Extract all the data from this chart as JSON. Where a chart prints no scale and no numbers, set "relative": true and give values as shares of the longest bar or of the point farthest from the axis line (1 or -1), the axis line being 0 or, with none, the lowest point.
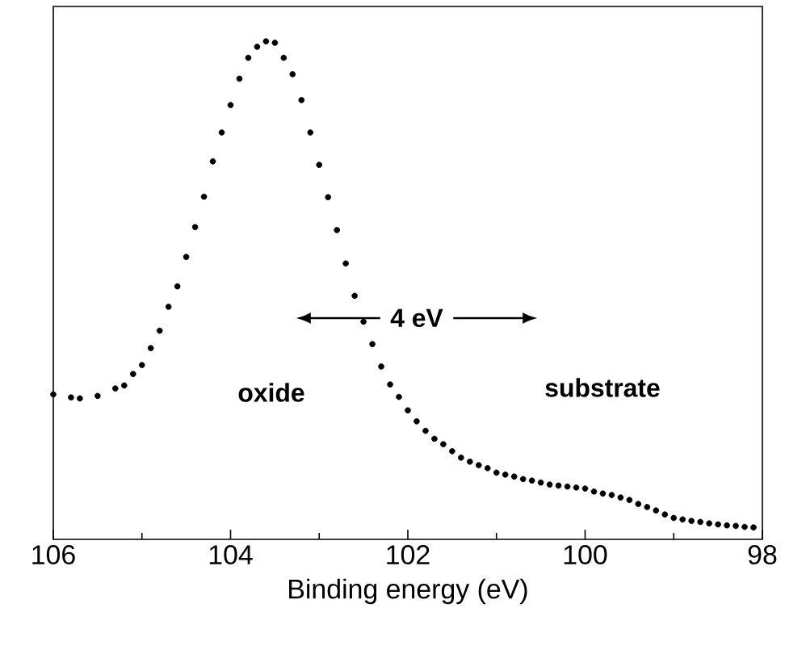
{
  "chart_data": {
    "type": "scatter",
    "relative": true,
    "xlabel": "Binding energy (eV)",
    "xlim": [
      106,
      98
    ],
    "xticks": [
      106,
      {
        "value": 105,
        "label": null
      },
      104,
      {
        "value": 103,
        "label": null
      },
      102,
      {
        "value": 101,
        "label": null
      },
      100,
      {
        "value": 99,
        "label": null
      },
      98
    ],
    "tick_labels": "x",
    "marker": "circle",
    "grid": false,
    "annotations": [
      "4 eV",
      "oxide",
      "substrate"
    ],
    "series": [
      {
        "color": "#000000",
        "x": [
          106.0,
          105.8,
          105.7,
          105.5,
          105.3,
          105.2,
          105.1,
          105.0,
          104.9,
          104.8,
          104.7,
          104.6,
          104.5,
          104.4,
          104.3,
          104.2,
          104.1,
          104.0,
          103.9,
          103.8,
          103.7,
          103.6,
          103.5,
          103.4,
          103.3,
          103.2,
          103.1,
          103.0,
          102.9,
          102.8,
          102.7,
          102.6,
          102.5,
          102.4,
          102.3,
          102.2,
          102.1,
          102.0,
          101.9,
          101.8,
          101.7,
          101.6,
          101.5,
          101.4,
          101.3,
          101.2,
          101.1,
          101.0,
          100.9,
          100.8,
          100.7,
          100.6,
          100.5,
          100.4,
          100.3,
          100.2,
          100.1,
          100.0,
          99.9,
          99.8,
          99.7,
          99.6,
          99.5,
          99.4,
          99.3,
          99.2,
          99.1,
          99.0,
          98.9,
          98.8,
          98.7,
          98.6,
          98.5,
          98.4,
          98.3,
          98.2,
          98.1
        ],
        "values": [
          0.291,
          0.285,
          0.283,
          0.288,
          0.303,
          0.309,
          0.332,
          0.35,
          0.384,
          0.419,
          0.467,
          0.508,
          0.567,
          0.627,
          0.688,
          0.759,
          0.817,
          0.872,
          0.925,
          0.967,
          0.989,
          1.0,
          0.997,
          0.967,
          0.934,
          0.882,
          0.817,
          0.752,
          0.687,
          0.621,
          0.554,
          0.489,
          0.437,
          0.392,
          0.347,
          0.311,
          0.286,
          0.259,
          0.237,
          0.218,
          0.202,
          0.191,
          0.177,
          0.164,
          0.156,
          0.149,
          0.143,
          0.134,
          0.13,
          0.126,
          0.121,
          0.118,
          0.114,
          0.11,
          0.108,
          0.106,
          0.104,
          0.102,
          0.096,
          0.092,
          0.089,
          0.084,
          0.079,
          0.071,
          0.065,
          0.058,
          0.05,
          0.043,
          0.04,
          0.037,
          0.035,
          0.032,
          0.03,
          0.028,
          0.027,
          0.025,
          0.024
        ]
      }
    ]
  }
}
